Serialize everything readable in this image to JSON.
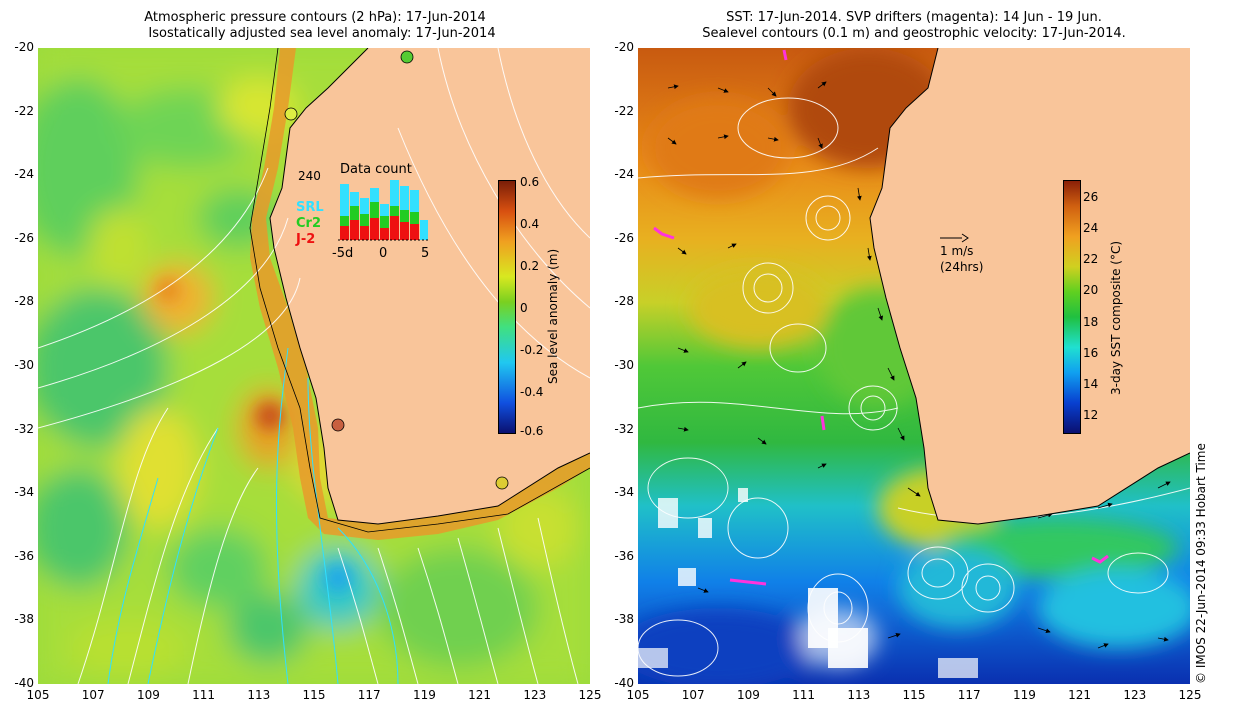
{
  "left_panel": {
    "title_line1": "Atmospheric pressure contours (2 hPa): 17-Jun-2014",
    "title_line2": "Isostatically adjusted sea level anomaly: 17-Jun-2014",
    "colorbar": {
      "label": "Sea level anomaly (m)",
      "ticks": [
        "0.6",
        "0.4",
        "0.2",
        "0",
        "-0.2",
        "-0.4",
        "-0.6"
      ],
      "range": [
        -0.6,
        0.6
      ]
    },
    "inset": {
      "title": "Data count",
      "max_label": "240",
      "x_ticks": [
        "-5d",
        "0",
        "5"
      ],
      "legend": [
        {
          "name": "SRL",
          "color": "#33e0ff"
        },
        {
          "name": "Cr2",
          "color": "#22cc22"
        },
        {
          "name": "J-2",
          "color": "#ee1111"
        }
      ]
    },
    "markers": [
      {
        "lon": 114.0,
        "lat": -22.0,
        "color": "#ddee44"
      },
      {
        "lon": 118.0,
        "lat": -20.3,
        "color": "#55cc33"
      },
      {
        "lon": 115.9,
        "lat": -31.8,
        "color": "#c86040"
      },
      {
        "lon": 121.9,
        "lat": -33.7,
        "color": "#ddcc33"
      }
    ]
  },
  "right_panel": {
    "title_line1": "SST: 17-Jun-2014. SVP drifters (magenta): 14 Jun - 19 Jun.",
    "title_line2": "Sealevel contours (0.1 m) and geostrophic velocity: 17-Jun-2014.",
    "colorbar": {
      "label": "3-day SST composite (°C)",
      "ticks": [
        "26",
        "24",
        "22",
        "20",
        "18",
        "16",
        "14",
        "12"
      ],
      "range": [
        11,
        27
      ]
    },
    "scale_arrow": {
      "label_line1": "1 m/s",
      "label_line2": "(24hrs)"
    }
  },
  "axes": {
    "x_ticks": [
      "105",
      "107",
      "109",
      "111",
      "113",
      "115",
      "117",
      "119",
      "121",
      "123",
      "125"
    ],
    "y_ticks": [
      "-20",
      "-22",
      "-24",
      "-26",
      "-28",
      "-30",
      "-32",
      "-34",
      "-36",
      "-38",
      "-40"
    ],
    "lon_range": [
      105,
      125
    ],
    "lat_range": [
      -40,
      -20
    ]
  },
  "credit": "© IMOS 22-Jun-2014 09:33 Hobart Time",
  "colors": {
    "land": "#f9c59a",
    "sla_scale": [
      "#0a1070",
      "#1050e0",
      "#20c8f0",
      "#40e080",
      "#7ad020",
      "#d8e820",
      "#f0a020",
      "#d85010",
      "#7a1e08"
    ],
    "sst_scale": [
      "#0a1070",
      "#0840d0",
      "#10a0f0",
      "#20e0d0",
      "#20c040",
      "#60d020",
      "#d0d020",
      "#f0a020",
      "#d06010",
      "#8a2008"
    ],
    "drifter": "#ff33dd"
  }
}
